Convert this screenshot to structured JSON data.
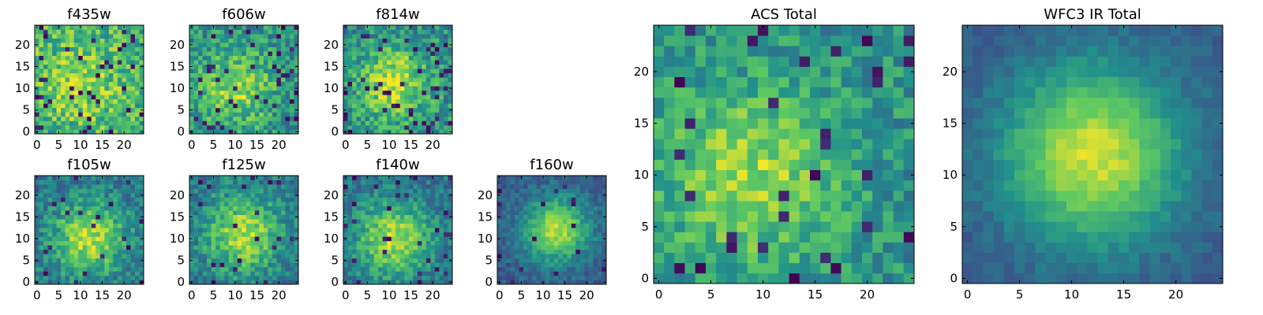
{
  "figure": {
    "colormap": [
      "#440154",
      "#3b528b",
      "#21918c",
      "#5ec962",
      "#fde725"
    ]
  },
  "chart_data": [
    {
      "type": "heatmap",
      "title": "f435w",
      "grid_size": 25,
      "xlim": [
        -0.5,
        24.5
      ],
      "ylim": [
        -0.5,
        24.5
      ],
      "xticks": [
        0,
        5,
        10,
        15,
        20
      ],
      "yticks": [
        0,
        5,
        10,
        15,
        20
      ],
      "field": {
        "seed": 11,
        "peak_x": 10,
        "peak_y": 11,
        "width": 8,
        "source_amp": 0.18,
        "background": 0.62,
        "noise": 0.22,
        "dark_fraction": 0.06
      }
    },
    {
      "type": "heatmap",
      "title": "f606w",
      "grid_size": 25,
      "xlim": [
        -0.5,
        24.5
      ],
      "ylim": [
        -0.5,
        24.5
      ],
      "xticks": [
        0,
        5,
        10,
        15,
        20
      ],
      "yticks": [
        0,
        5,
        10,
        15,
        20
      ],
      "field": {
        "seed": 23,
        "peak_x": 10,
        "peak_y": 10,
        "width": 6,
        "source_amp": 0.35,
        "background": 0.5,
        "noise": 0.2,
        "dark_fraction": 0.06
      }
    },
    {
      "type": "heatmap",
      "title": "f814w",
      "grid_size": 25,
      "xlim": [
        -0.5,
        24.5
      ],
      "ylim": [
        -0.5,
        24.5
      ],
      "xticks": [
        0,
        5,
        10,
        15,
        20
      ],
      "yticks": [
        0,
        5,
        10,
        15,
        20
      ],
      "field": {
        "seed": 37,
        "peak_x": 11,
        "peak_y": 11,
        "width": 6,
        "source_amp": 0.4,
        "background": 0.48,
        "noise": 0.2,
        "dark_fraction": 0.07
      }
    },
    {
      "type": "heatmap",
      "title": "f105w",
      "grid_size": 25,
      "xlim": [
        -0.5,
        24.5
      ],
      "ylim": [
        -0.5,
        24.5
      ],
      "xticks": [
        0,
        5,
        10,
        15,
        20
      ],
      "yticks": [
        0,
        5,
        10,
        15,
        20
      ],
      "field": {
        "seed": 41,
        "peak_x": 12,
        "peak_y": 10,
        "width": 6,
        "source_amp": 0.5,
        "background": 0.38,
        "noise": 0.16,
        "dark_fraction": 0.04
      }
    },
    {
      "type": "heatmap",
      "title": "f125w",
      "grid_size": 25,
      "xlim": [
        -0.5,
        24.5
      ],
      "ylim": [
        -0.5,
        24.5
      ],
      "xticks": [
        0,
        5,
        10,
        15,
        20
      ],
      "yticks": [
        0,
        5,
        10,
        15,
        20
      ],
      "field": {
        "seed": 53,
        "peak_x": 12,
        "peak_y": 11,
        "width": 6,
        "source_amp": 0.48,
        "background": 0.4,
        "noise": 0.16,
        "dark_fraction": 0.04
      }
    },
    {
      "type": "heatmap",
      "title": "f140w",
      "grid_size": 25,
      "xlim": [
        -0.5,
        24.5
      ],
      "ylim": [
        -0.5,
        24.5
      ],
      "xticks": [
        0,
        5,
        10,
        15,
        20
      ],
      "yticks": [
        0,
        5,
        10,
        15,
        20
      ],
      "field": {
        "seed": 67,
        "peak_x": 11,
        "peak_y": 10,
        "width": 6,
        "source_amp": 0.5,
        "background": 0.38,
        "noise": 0.14,
        "dark_fraction": 0.04
      }
    },
    {
      "type": "heatmap",
      "title": "f160w",
      "grid_size": 25,
      "xlim": [
        -0.5,
        24.5
      ],
      "ylim": [
        -0.5,
        24.5
      ],
      "xticks": [
        0,
        5,
        10,
        15,
        20
      ],
      "yticks": [
        0,
        5,
        10,
        15,
        20
      ],
      "field": {
        "seed": 79,
        "peak_x": 13,
        "peak_y": 12,
        "width": 5,
        "source_amp": 0.6,
        "background": 0.3,
        "noise": 0.1,
        "dark_fraction": 0.03
      }
    },
    {
      "type": "heatmap",
      "title": "ACS Total",
      "grid_size": 25,
      "xlim": [
        -0.5,
        24.5
      ],
      "ylim": [
        -0.5,
        24.5
      ],
      "xticks": [
        0,
        5,
        10,
        15,
        20
      ],
      "yticks": [
        0,
        5,
        10,
        15,
        20
      ],
      "field": {
        "seed": 97,
        "peak_x": 9,
        "peak_y": 10,
        "width": 6,
        "source_amp": 0.35,
        "background": 0.5,
        "noise": 0.16,
        "dark_fraction": 0.05
      }
    },
    {
      "type": "heatmap",
      "title": "WFC3 IR Total",
      "grid_size": 25,
      "xlim": [
        -0.5,
        24.5
      ],
      "ylim": [
        -0.5,
        24.5
      ],
      "xticks": [
        0,
        5,
        10,
        15,
        20
      ],
      "yticks": [
        0,
        5,
        10,
        15,
        20
      ],
      "field": {
        "seed": 131,
        "peak_x": 12,
        "peak_y": 12,
        "width": 6,
        "source_amp": 0.65,
        "background": 0.28,
        "noise": 0.06,
        "dark_fraction": 0.0
      }
    }
  ]
}
